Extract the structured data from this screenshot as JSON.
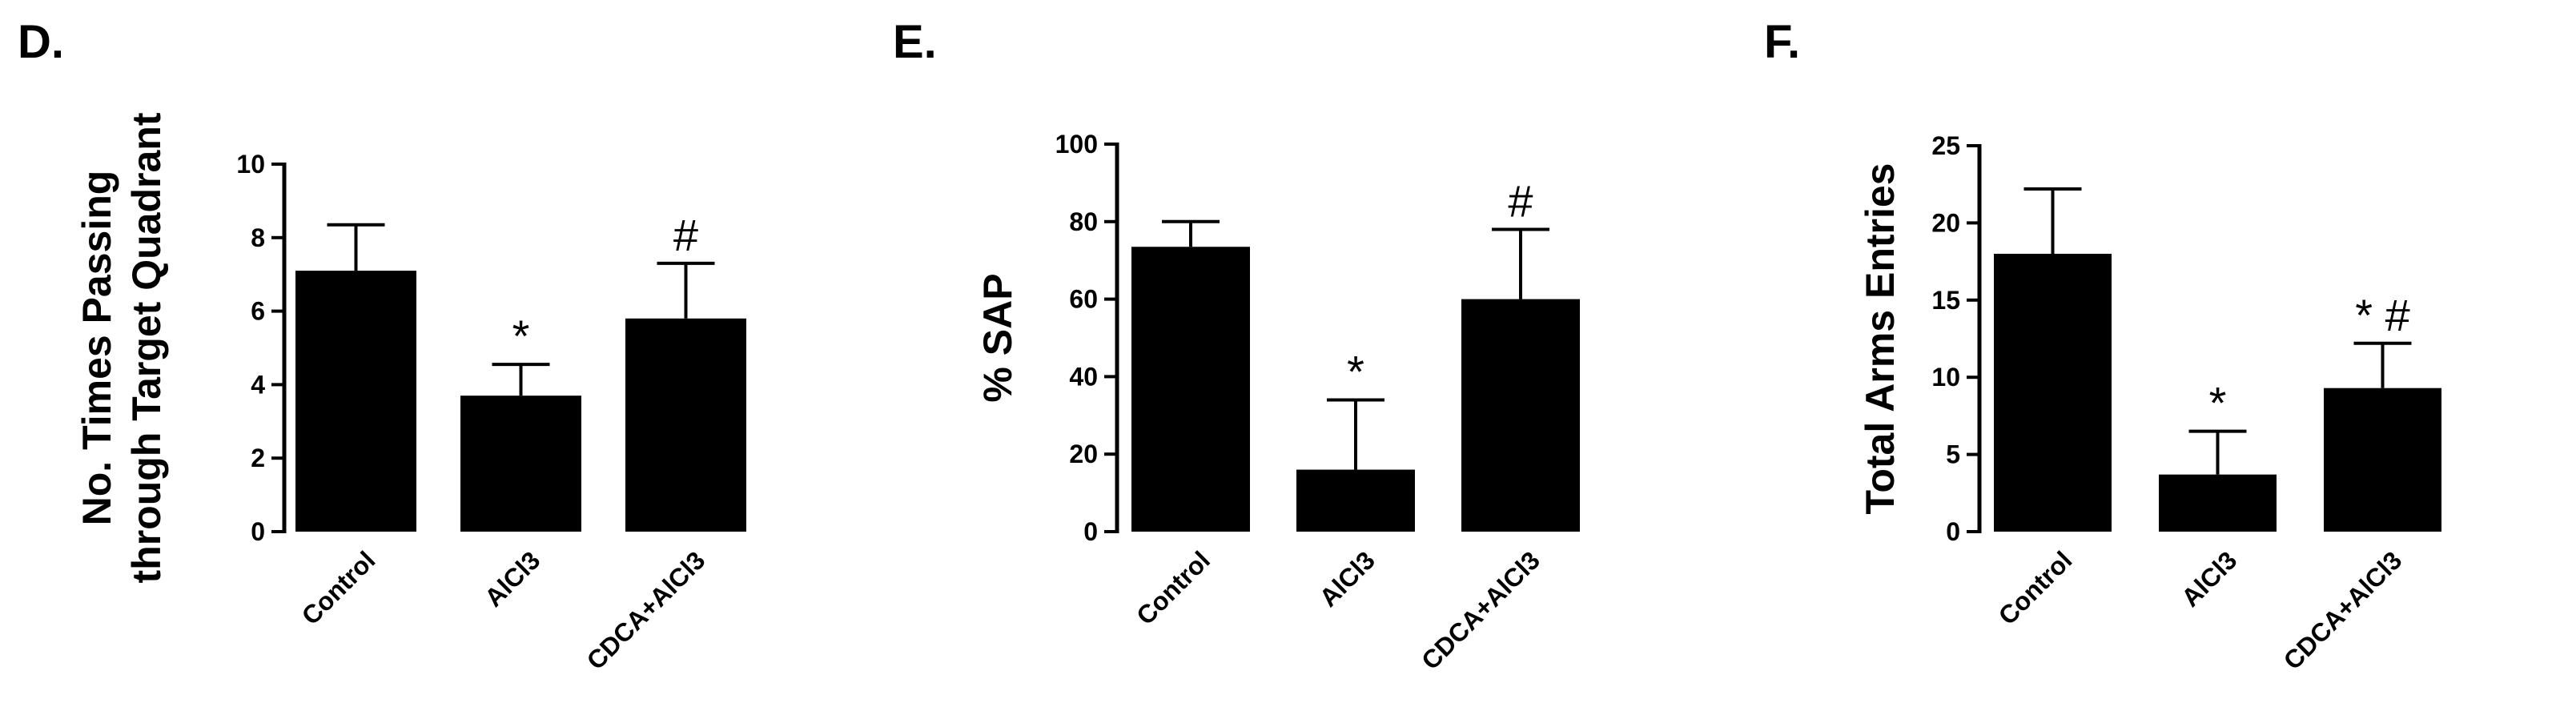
{
  "chart_data": [
    {
      "panel": "D.",
      "type": "bar",
      "ylabel_lines": [
        "No. Times Passing",
        "through Target Quadrant"
      ],
      "categories": [
        "Control",
        "AlCl3",
        "CDCA+AlCl3"
      ],
      "values": [
        7.1,
        3.7,
        5.8
      ],
      "errors": [
        1.25,
        0.85,
        1.5
      ],
      "significance": [
        "",
        "*",
        "#"
      ],
      "ylim": [
        0,
        10
      ],
      "yticks": [
        0,
        2,
        4,
        6,
        8,
        10
      ]
    },
    {
      "panel": "E.",
      "type": "bar",
      "ylabel_lines": [
        "% SAP"
      ],
      "categories": [
        "Control",
        "AlCl3",
        "CDCA+AlCl3"
      ],
      "values": [
        73.5,
        16,
        60
      ],
      "errors": [
        6.5,
        18,
        18
      ],
      "significance": [
        "",
        "*",
        "#"
      ],
      "ylim": [
        0,
        100
      ],
      "yticks": [
        0,
        20,
        40,
        60,
        80,
        100
      ]
    },
    {
      "panel": "F.",
      "type": "bar",
      "ylabel_lines": [
        "Total Arms Entries"
      ],
      "categories": [
        "Control",
        "AlCl3",
        "CDCA+AlCl3"
      ],
      "values": [
        18,
        3.7,
        9.3
      ],
      "errors": [
        4.2,
        2.8,
        2.9
      ],
      "significance": [
        "",
        "*",
        "* #"
      ],
      "ylim": [
        0,
        25
      ],
      "yticks": [
        0,
        5,
        10,
        15,
        20,
        25
      ]
    }
  ]
}
